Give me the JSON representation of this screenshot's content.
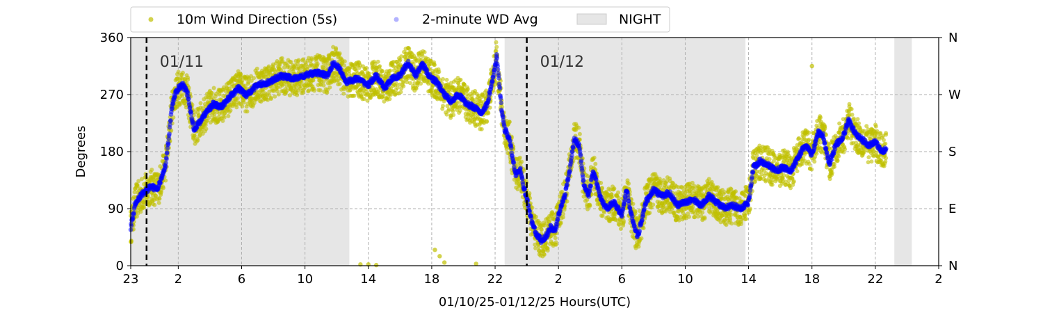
{
  "chart_data": {
    "type": "scatter",
    "title": "",
    "xlabel": "01/10/25-01/12/25  Hours(UTC)",
    "ylabel": "Degrees",
    "x_unit": "hours since 23 UTC 01/10",
    "xlim": [
      0,
      51
    ],
    "ylim": [
      0,
      360
    ],
    "x_ticks": [
      {
        "h": 0,
        "label": "23"
      },
      {
        "h": 3,
        "label": "2"
      },
      {
        "h": 7,
        "label": "6"
      },
      {
        "h": 11,
        "label": "10"
      },
      {
        "h": 15,
        "label": "14"
      },
      {
        "h": 19,
        "label": "18"
      },
      {
        "h": 23,
        "label": "22"
      },
      {
        "h": 27,
        "label": "2"
      },
      {
        "h": 31,
        "label": "6"
      },
      {
        "h": 35,
        "label": "10"
      },
      {
        "h": 39,
        "label": "14"
      },
      {
        "h": 43,
        "label": "18"
      },
      {
        "h": 47,
        "label": "22"
      },
      {
        "h": 51,
        "label": "2"
      }
    ],
    "y_ticks": [
      0,
      90,
      180,
      270,
      360
    ],
    "y2_ticks": [
      {
        "value": 0,
        "label": "N"
      },
      {
        "value": 90,
        "label": "E"
      },
      {
        "value": 180,
        "label": "S"
      },
      {
        "value": 270,
        "label": "W"
      },
      {
        "value": 360,
        "label": "N"
      }
    ],
    "grid": true,
    "legend_position": "top",
    "legend": [
      {
        "label": "10m Wind Direction (5s)",
        "color": "#bfbf00",
        "marker": "dot"
      },
      {
        "label": "2-minute WD Avg",
        "color": "#0000ff",
        "marker": "dot"
      },
      {
        "label": "NIGHT",
        "color": "#e6e6e6",
        "marker": "patch"
      }
    ],
    "night_bands": [
      [
        0,
        13.8
      ],
      [
        23.6,
        38.8
      ],
      [
        48.2,
        49.3
      ]
    ],
    "day_markers": [
      {
        "h": 1,
        "label": "01/11"
      },
      {
        "h": 25,
        "label": "01/12"
      }
    ],
    "series": [
      {
        "name": "2-minute WD Avg",
        "color": "#0000ff",
        "points": [
          [
            0,
            60
          ],
          [
            0.3,
            100
          ],
          [
            0.8,
            115
          ],
          [
            1.3,
            125
          ],
          [
            1.7,
            120
          ],
          [
            2.2,
            160
          ],
          [
            2.4,
            200
          ],
          [
            2.6,
            250
          ],
          [
            2.8,
            270
          ],
          [
            3.0,
            280
          ],
          [
            3.3,
            285
          ],
          [
            3.6,
            270
          ],
          [
            3.8,
            240
          ],
          [
            4.0,
            215
          ],
          [
            4.3,
            225
          ],
          [
            4.7,
            240
          ],
          [
            5.2,
            255
          ],
          [
            5.7,
            250
          ],
          [
            6.2,
            265
          ],
          [
            6.8,
            280
          ],
          [
            7.3,
            270
          ],
          [
            8.0,
            285
          ],
          [
            8.8,
            290
          ],
          [
            9.5,
            300
          ],
          [
            10.3,
            295
          ],
          [
            11.0,
            300
          ],
          [
            11.7,
            305
          ],
          [
            12.4,
            300
          ],
          [
            12.8,
            320
          ],
          [
            13.2,
            310
          ],
          [
            13.6,
            290
          ],
          [
            14.3,
            295
          ],
          [
            15.0,
            285
          ],
          [
            15.5,
            300
          ],
          [
            16.0,
            280
          ],
          [
            16.5,
            295
          ],
          [
            17.0,
            300
          ],
          [
            17.5,
            320
          ],
          [
            18.0,
            300
          ],
          [
            18.4,
            320
          ],
          [
            18.8,
            300
          ],
          [
            19.3,
            290
          ],
          [
            19.8,
            270
          ],
          [
            20.2,
            260
          ],
          [
            20.7,
            270
          ],
          [
            21.2,
            255
          ],
          [
            21.7,
            250
          ],
          [
            22.1,
            240
          ],
          [
            22.5,
            255
          ],
          [
            22.9,
            300
          ],
          [
            23.1,
            330
          ],
          [
            23.25,
            290
          ],
          [
            23.4,
            250
          ],
          [
            23.6,
            215
          ],
          [
            23.9,
            200
          ],
          [
            24.1,
            170
          ],
          [
            24.3,
            145
          ],
          [
            24.6,
            150
          ],
          [
            24.8,
            125
          ],
          [
            25.1,
            95
          ],
          [
            25.3,
            70
          ],
          [
            25.6,
            50
          ],
          [
            25.9,
            40
          ],
          [
            26.2,
            45
          ],
          [
            26.5,
            60
          ],
          [
            26.8,
            55
          ],
          [
            27.1,
            90
          ],
          [
            27.4,
            110
          ],
          [
            27.7,
            150
          ],
          [
            28.0,
            200
          ],
          [
            28.3,
            190
          ],
          [
            28.6,
            130
          ],
          [
            28.9,
            110
          ],
          [
            29.2,
            150
          ],
          [
            29.6,
            110
          ],
          [
            30.0,
            90
          ],
          [
            30.5,
            100
          ],
          [
            31.0,
            80
          ],
          [
            31.3,
            120
          ],
          [
            31.6,
            80
          ],
          [
            32.0,
            45
          ],
          [
            32.5,
            100
          ],
          [
            33.0,
            120
          ],
          [
            33.5,
            110
          ],
          [
            34.0,
            115
          ],
          [
            34.5,
            95
          ],
          [
            35.0,
            100
          ],
          [
            35.5,
            105
          ],
          [
            36.0,
            95
          ],
          [
            36.5,
            110
          ],
          [
            37.0,
            100
          ],
          [
            37.5,
            90
          ],
          [
            38.0,
            95
          ],
          [
            38.5,
            90
          ],
          [
            39.0,
            100
          ],
          [
            39.3,
            155
          ],
          [
            39.7,
            165
          ],
          [
            40.2,
            160
          ],
          [
            40.7,
            150
          ],
          [
            41.2,
            155
          ],
          [
            41.7,
            150
          ],
          [
            42.2,
            175
          ],
          [
            42.6,
            190
          ],
          [
            43.0,
            175
          ],
          [
            43.4,
            210
          ],
          [
            43.7,
            205
          ],
          [
            44.1,
            160
          ],
          [
            44.5,
            190
          ],
          [
            45.0,
            205
          ],
          [
            45.3,
            230
          ],
          [
            45.7,
            210
          ],
          [
            46.1,
            200
          ],
          [
            46.6,
            190
          ],
          [
            47.0,
            195
          ],
          [
            47.4,
            180
          ],
          [
            47.7,
            185
          ]
        ]
      },
      {
        "name": "10m Wind Direction (5s)",
        "color": "#bfbf00",
        "spread_deg": 28,
        "points_note": "scatter around the 2-minute average with ± spread; isolated readings near 0 and 320",
        "outliers": [
          [
            14.5,
            2
          ],
          [
            15.0,
            2
          ],
          [
            15.5,
            1
          ],
          [
            19.2,
            25
          ],
          [
            19.5,
            15
          ],
          [
            19.8,
            5
          ],
          [
            21.8,
            3
          ],
          [
            43.0,
            315
          ]
        ]
      }
    ]
  }
}
